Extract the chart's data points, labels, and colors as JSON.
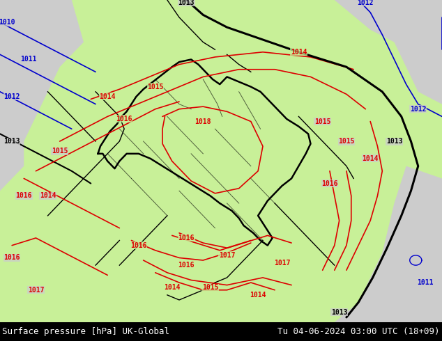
{
  "title_left": "Surface pressure [hPa] UK-Global",
  "title_right": "Tu 04-06-2024 03:00 UTC (18+09)",
  "land_green": "#c8f098",
  "land_gray": "#cccccc",
  "contour_red": "#dd0000",
  "contour_blue": "#0000cc",
  "contour_black": "#000000",
  "footer_bg": "#000000",
  "footer_fg": "#ffffff",
  "font_mono": "monospace",
  "label_fs": 7,
  "footer_fs": 9,
  "lon_min": 2.0,
  "lon_max": 20.5,
  "lat_min": 44.2,
  "lat_max": 57.2
}
